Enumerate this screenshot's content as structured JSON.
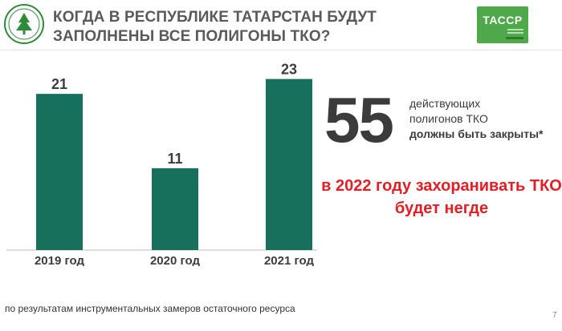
{
  "header": {
    "title": "КОГДА В РЕСПУБЛИКЕ ТАТАРСТАН БУДУТ ЗАПОЛНЕНЫ ВСЕ ПОЛИГОНЫ ТКО?",
    "logo_right_text": "ТАССР",
    "brand_color": "#4fa84a"
  },
  "chart_data": {
    "type": "bar",
    "categories": [
      "2019 год",
      "2020 год",
      "2021 год"
    ],
    "values": [
      21,
      11,
      23
    ],
    "bar_color": "#17705b",
    "ylim": [
      0,
      25
    ],
    "data_labels": true,
    "grid": false
  },
  "highlight": {
    "number": "55",
    "caption_line1": "действующих",
    "caption_line2": "полигонов ТКО",
    "caption_line3": "должны быть закрыты*",
    "statement": "в 2022 году захоранивать ТКО будет негде",
    "statement_color": "#e31e24"
  },
  "footnote": "по результатам инструментальных замеров остаточного ресурса",
  "page_number": "7"
}
